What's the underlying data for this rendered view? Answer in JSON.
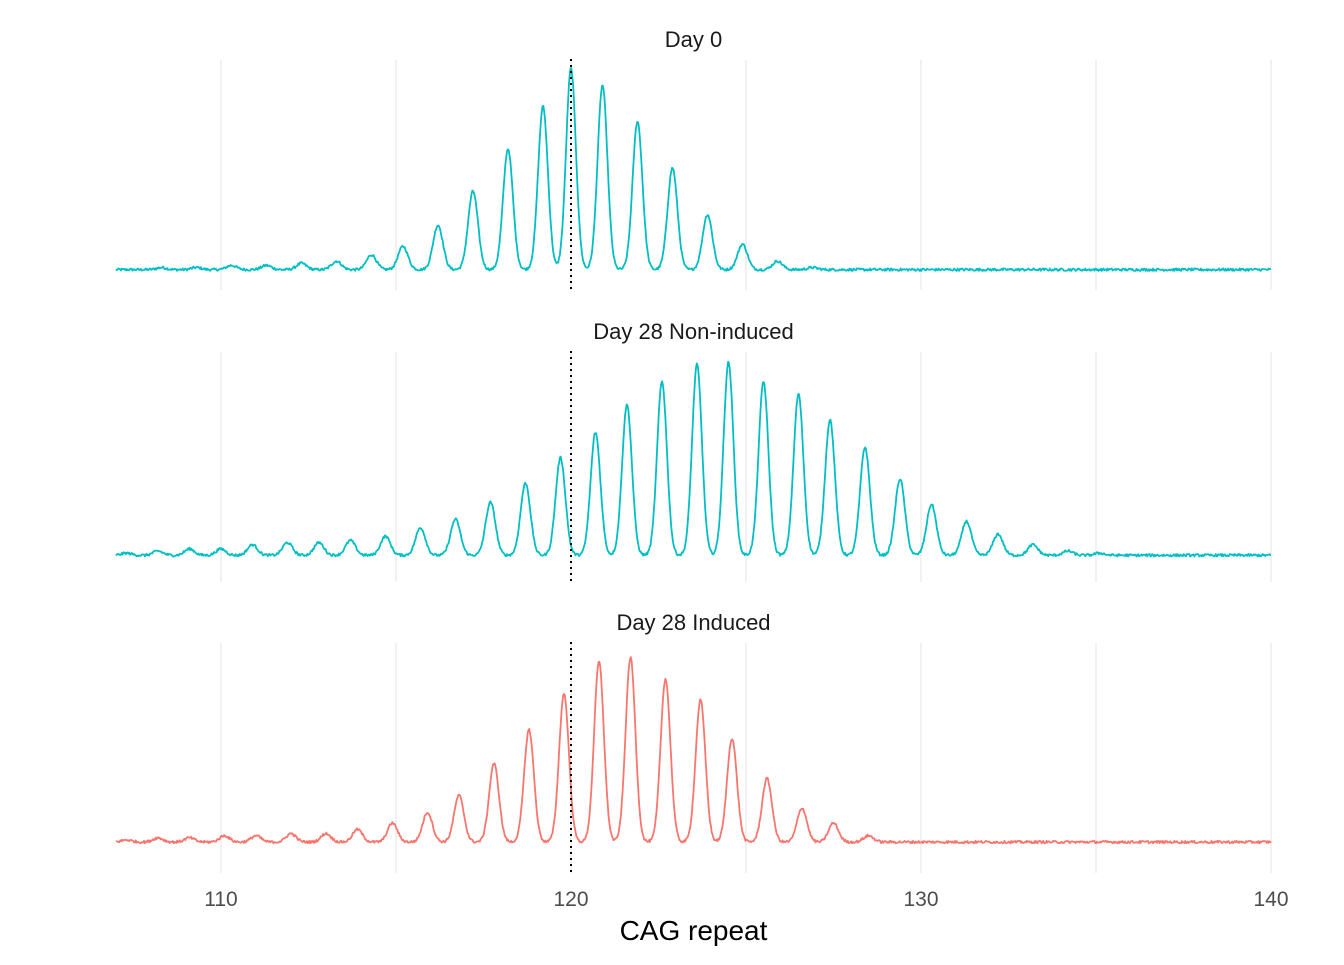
{
  "chart_data": {
    "type": "line",
    "layout": "faceted-vertical",
    "xlabel": "CAG repeat",
    "xlim": [
      107,
      140
    ],
    "x_ticks": [
      110,
      120,
      130,
      140
    ],
    "x_tick_labels": [
      "110",
      "120",
      "130",
      "140"
    ],
    "reference_line": {
      "x": 120,
      "style": "dotted",
      "color": "#000000"
    },
    "grid": "vertical-major-and-minor",
    "y_axis_shown": false,
    "panels": [
      {
        "title": "Day 0",
        "color": "#00BFC4",
        "baseline": 0.03,
        "peaks": [
          {
            "x": 107.3,
            "y": 0.03
          },
          {
            "x": 108.3,
            "y": 0.04
          },
          {
            "x": 109.3,
            "y": 0.04
          },
          {
            "x": 110.3,
            "y": 0.05
          },
          {
            "x": 111.3,
            "y": 0.05
          },
          {
            "x": 112.3,
            "y": 0.06
          },
          {
            "x": 113.3,
            "y": 0.07
          },
          {
            "x": 114.3,
            "y": 0.1
          },
          {
            "x": 115.2,
            "y": 0.14
          },
          {
            "x": 116.2,
            "y": 0.24
          },
          {
            "x": 117.2,
            "y": 0.4
          },
          {
            "x": 118.2,
            "y": 0.6
          },
          {
            "x": 119.2,
            "y": 0.8
          },
          {
            "x": 120.0,
            "y": 0.98
          },
          {
            "x": 120.9,
            "y": 0.9
          },
          {
            "x": 121.9,
            "y": 0.73
          },
          {
            "x": 122.9,
            "y": 0.51
          },
          {
            "x": 123.9,
            "y": 0.29
          },
          {
            "x": 124.9,
            "y": 0.15
          },
          {
            "x": 125.9,
            "y": 0.07
          },
          {
            "x": 126.9,
            "y": 0.04
          },
          {
            "x": 127.9,
            "y": 0.03
          },
          {
            "x": 128.9,
            "y": 0.02
          },
          {
            "x": 129.9,
            "y": 0.02
          }
        ]
      },
      {
        "title": "Day 28 Non-induced",
        "color": "#00BFC4",
        "baseline": 0.06,
        "peaks": [
          {
            "x": 107.3,
            "y": 0.07
          },
          {
            "x": 108.2,
            "y": 0.08
          },
          {
            "x": 109.1,
            "y": 0.09
          },
          {
            "x": 110.0,
            "y": 0.09
          },
          {
            "x": 110.9,
            "y": 0.11
          },
          {
            "x": 111.9,
            "y": 0.12
          },
          {
            "x": 112.8,
            "y": 0.12
          },
          {
            "x": 113.7,
            "y": 0.13
          },
          {
            "x": 114.7,
            "y": 0.15
          },
          {
            "x": 115.7,
            "y": 0.19
          },
          {
            "x": 116.7,
            "y": 0.23
          },
          {
            "x": 117.7,
            "y": 0.31
          },
          {
            "x": 118.7,
            "y": 0.4
          },
          {
            "x": 119.7,
            "y": 0.52
          },
          {
            "x": 120.7,
            "y": 0.64
          },
          {
            "x": 121.6,
            "y": 0.77
          },
          {
            "x": 122.6,
            "y": 0.88
          },
          {
            "x": 123.6,
            "y": 0.96
          },
          {
            "x": 124.5,
            "y": 0.97
          },
          {
            "x": 125.5,
            "y": 0.88
          },
          {
            "x": 126.5,
            "y": 0.82
          },
          {
            "x": 127.4,
            "y": 0.7
          },
          {
            "x": 128.4,
            "y": 0.57
          },
          {
            "x": 129.4,
            "y": 0.42
          },
          {
            "x": 130.3,
            "y": 0.3
          },
          {
            "x": 131.3,
            "y": 0.22
          },
          {
            "x": 132.2,
            "y": 0.16
          },
          {
            "x": 133.2,
            "y": 0.11
          },
          {
            "x": 134.2,
            "y": 0.08
          },
          {
            "x": 135.1,
            "y": 0.07
          },
          {
            "x": 136.1,
            "y": 0.05
          },
          {
            "x": 137.1,
            "y": 0.04
          },
          {
            "x": 138.1,
            "y": 0.03
          },
          {
            "x": 139.0,
            "y": 0.02
          }
        ]
      },
      {
        "title": "Day 28 Induced",
        "color": "#F8766D",
        "baseline": 0.08,
        "peaks": [
          {
            "x": 107.3,
            "y": 0.09
          },
          {
            "x": 108.2,
            "y": 0.1
          },
          {
            "x": 109.1,
            "y": 0.1
          },
          {
            "x": 110.1,
            "y": 0.11
          },
          {
            "x": 111.0,
            "y": 0.11
          },
          {
            "x": 112.0,
            "y": 0.12
          },
          {
            "x": 113.0,
            "y": 0.12
          },
          {
            "x": 113.9,
            "y": 0.14
          },
          {
            "x": 114.9,
            "y": 0.17
          },
          {
            "x": 115.9,
            "y": 0.22
          },
          {
            "x": 116.8,
            "y": 0.3
          },
          {
            "x": 117.8,
            "y": 0.45
          },
          {
            "x": 118.8,
            "y": 0.61
          },
          {
            "x": 119.8,
            "y": 0.78
          },
          {
            "x": 120.8,
            "y": 0.93
          },
          {
            "x": 121.7,
            "y": 0.95
          },
          {
            "x": 122.7,
            "y": 0.85
          },
          {
            "x": 123.7,
            "y": 0.75
          },
          {
            "x": 124.6,
            "y": 0.57
          },
          {
            "x": 125.6,
            "y": 0.38
          },
          {
            "x": 126.6,
            "y": 0.24
          },
          {
            "x": 127.5,
            "y": 0.17
          },
          {
            "x": 128.5,
            "y": 0.11
          },
          {
            "x": 129.4,
            "y": 0.07
          },
          {
            "x": 130.4,
            "y": 0.05
          },
          {
            "x": 131.3,
            "y": 0.04
          },
          {
            "x": 132.3,
            "y": 0.03
          },
          {
            "x": 133.3,
            "y": 0.03
          },
          {
            "x": 134.2,
            "y": 0.02
          },
          {
            "x": 135.2,
            "y": 0.02
          }
        ]
      }
    ]
  }
}
